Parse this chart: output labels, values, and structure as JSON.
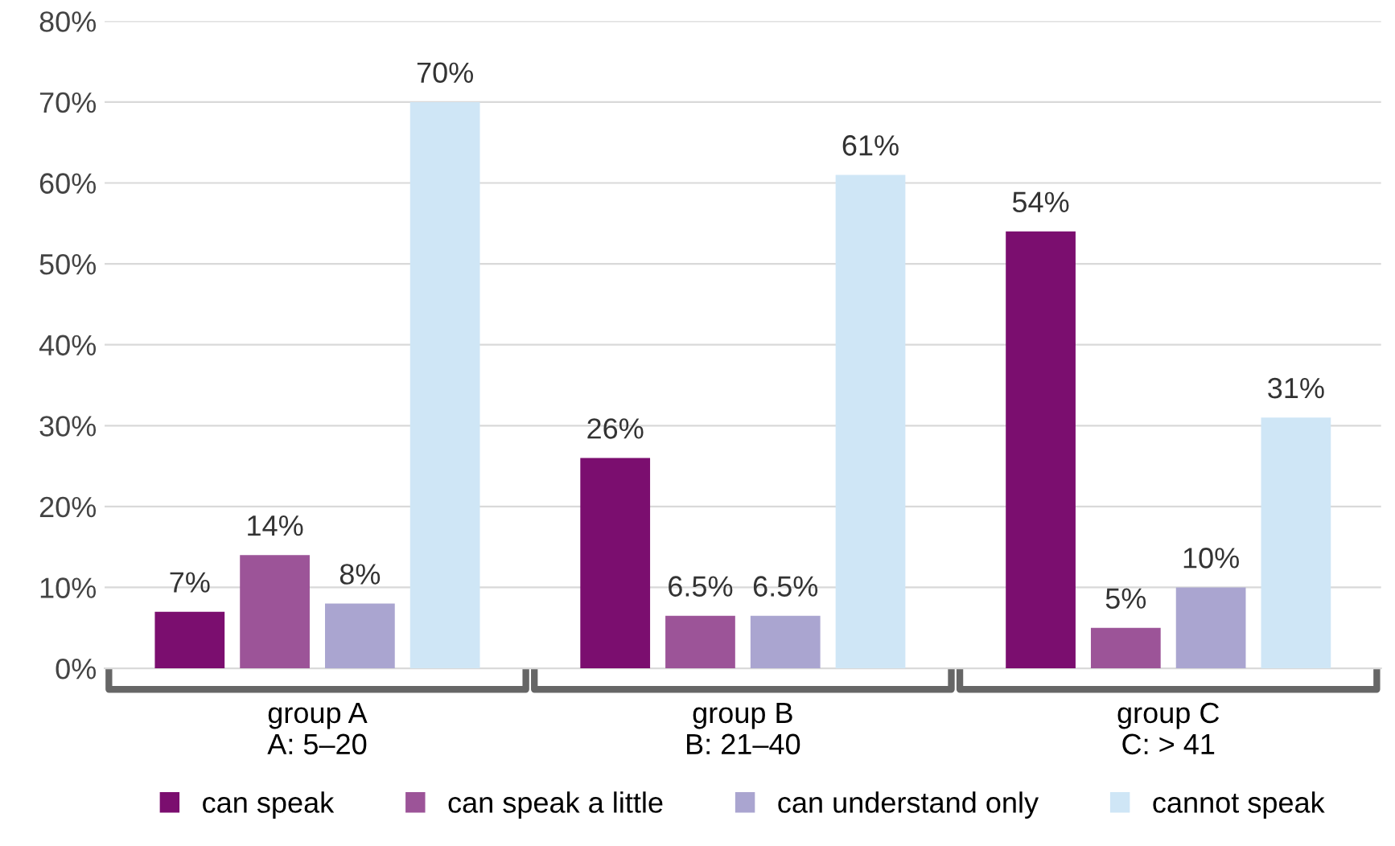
{
  "chart_data": {
    "type": "bar",
    "categories": [
      "group A\nA: 5–20",
      "group B\nB: 21–40",
      "group C\nC: > 41"
    ],
    "series": [
      {
        "name": "can speak",
        "color": "#7b0e6f",
        "values": [
          7,
          26,
          54
        ],
        "value_labels": [
          "7%",
          "26%",
          "54%"
        ]
      },
      {
        "name": "can speak a little",
        "color": "#9c5498",
        "values": [
          14,
          6.5,
          5
        ],
        "value_labels": [
          "14%",
          "6.5%",
          "5%"
        ]
      },
      {
        "name": "can understand only",
        "color": "#aaa5d0",
        "values": [
          8,
          6.5,
          10
        ],
        "value_labels": [
          "8%",
          "6.5%",
          "10%"
        ]
      },
      {
        "name": "cannot speak",
        "color": "#cfe6f6",
        "values": [
          70,
          61,
          31
        ],
        "value_labels": [
          "70%",
          "61%",
          "31%"
        ]
      }
    ],
    "ylim": [
      0,
      80
    ],
    "yticks": [
      {
        "value": 0,
        "label": "0%"
      },
      {
        "value": 10,
        "label": "10%"
      },
      {
        "value": 20,
        "label": "20%"
      },
      {
        "value": 30,
        "label": "30%"
      },
      {
        "value": 40,
        "label": "40%"
      },
      {
        "value": 50,
        "label": "50%"
      },
      {
        "value": 60,
        "label": "60%"
      },
      {
        "value": 70,
        "label": "70%"
      },
      {
        "value": 80,
        "label": "80%"
      }
    ],
    "grid": "y",
    "legend": "bottom"
  }
}
